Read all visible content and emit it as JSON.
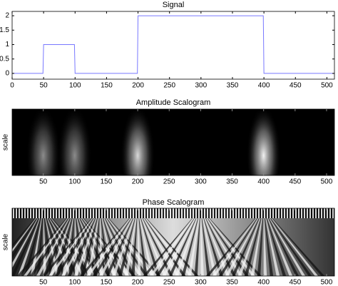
{
  "chart_data": [
    {
      "type": "line",
      "title": "Signal",
      "x": [
        0,
        49,
        50,
        99,
        100,
        199,
        200,
        399,
        400,
        512
      ],
      "values": [
        0,
        0,
        1,
        1,
        0,
        0,
        2,
        2,
        0,
        0
      ],
      "color": "#7878ff",
      "xlim": [
        0,
        512
      ],
      "xticks": [
        0,
        50,
        100,
        150,
        200,
        250,
        300,
        350,
        400,
        450,
        500
      ],
      "ylim": [
        -0.2,
        2.15
      ],
      "yticks": [
        0,
        0.5,
        1,
        1.5,
        2
      ],
      "grid": false
    },
    {
      "type": "scalogram",
      "mode": "amplitude",
      "title": "Amplitude Scalogram",
      "ylabel": "scale",
      "xlim": [
        0.5,
        512.5
      ],
      "xticks": [
        50,
        100,
        150,
        200,
        250,
        300,
        350,
        400,
        450,
        500
      ],
      "cones": [
        {
          "x": 50,
          "intensity": 0.55
        },
        {
          "x": 100,
          "intensity": 0.55
        },
        {
          "x": 200,
          "intensity": 0.85
        },
        {
          "x": 400,
          "intensity": 0.95
        }
      ]
    },
    {
      "type": "scalogram",
      "mode": "phase",
      "title": "Phase Scalogram",
      "ylabel": "scale",
      "xlim": [
        0.5,
        512.5
      ],
      "xticks": [
        50,
        100,
        150,
        200,
        250,
        300,
        350,
        400,
        450,
        500
      ],
      "cones": [
        {
          "x": 50,
          "intensity": 1
        },
        {
          "x": 100,
          "intensity": 1
        },
        {
          "x": 140,
          "intensity": 1
        },
        {
          "x": 200,
          "intensity": 1
        },
        {
          "x": 300,
          "intensity": 1
        },
        {
          "x": 400,
          "intensity": 1
        }
      ]
    }
  ]
}
